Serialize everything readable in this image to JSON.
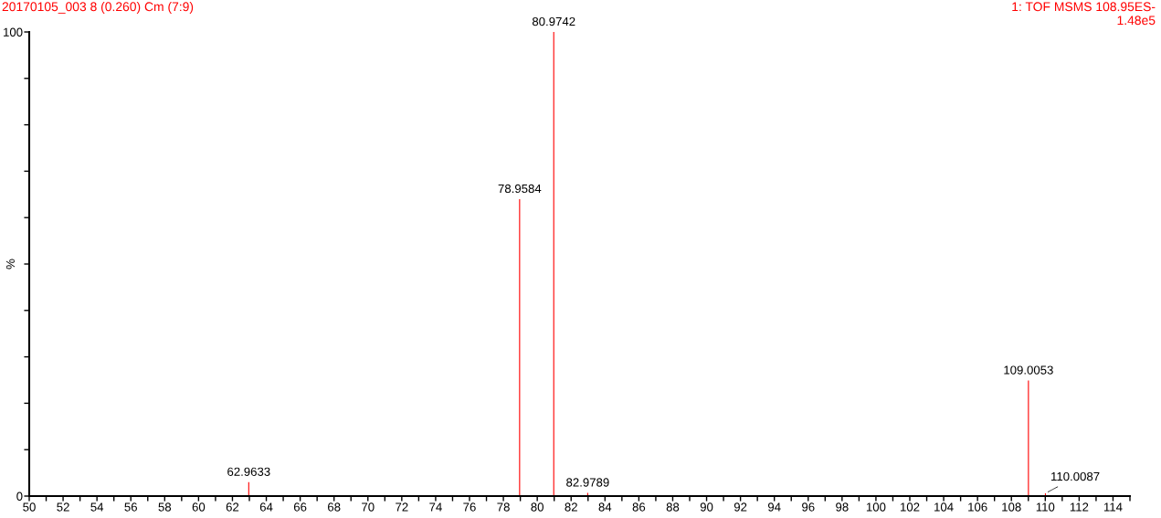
{
  "chart_data": {
    "type": "bar",
    "title": "20170105_003 8 (0.260) Cm (7:9)",
    "annotations": [
      "1: TOF MSMS 108.95ES-",
      "1.48e5",
      {
        "text": "62.9633",
        "x": 62.9633,
        "y": 3.0
      },
      {
        "text": "78.9584",
        "x": 78.9584,
        "y": 64.0
      },
      {
        "text": "80.9742",
        "x": 80.9742,
        "y": 100
      },
      {
        "text": "82.9789",
        "x": 82.9789,
        "y": 0.7
      },
      {
        "text": "109.0053",
        "x": 109.0053,
        "y": 24.9
      },
      {
        "text": "110.0087",
        "x": 110.0087,
        "y": 0.6
      }
    ],
    "ylabel": "%",
    "x": [
      62.9633,
      78.9584,
      80.9742,
      82.9789,
      109.0053,
      110.0087
    ],
    "values": [
      3.0,
      64.0,
      100,
      0.7,
      24.9,
      0.6
    ],
    "color": "#ff0000",
    "xlim": [
      50,
      115
    ],
    "xticks": [
      50,
      {
        "value": 51,
        "label": null
      },
      52,
      {
        "value": 53,
        "label": null
      },
      54,
      {
        "value": 55,
        "label": null
      },
      56,
      {
        "value": 57,
        "label": null
      },
      58,
      {
        "value": 59,
        "label": null
      },
      60,
      {
        "value": 61,
        "label": null
      },
      62,
      {
        "value": 63,
        "label": null
      },
      64,
      {
        "value": 65,
        "label": null
      },
      66,
      {
        "value": 67,
        "label": null
      },
      68,
      {
        "value": 69,
        "label": null
      },
      70,
      {
        "value": 71,
        "label": null
      },
      72,
      {
        "value": 73,
        "label": null
      },
      74,
      {
        "value": 75,
        "label": null
      },
      76,
      {
        "value": 77,
        "label": null
      },
      78,
      {
        "value": 79,
        "label": null
      },
      80,
      {
        "value": 81,
        "label": null
      },
      82,
      {
        "value": 83,
        "label": null
      },
      84,
      {
        "value": 85,
        "label": null
      },
      86,
      {
        "value": 87,
        "label": null
      },
      88,
      {
        "value": 89,
        "label": null
      },
      90,
      {
        "value": 91,
        "label": null
      },
      92,
      {
        "value": 93,
        "label": null
      },
      94,
      {
        "value": 95,
        "label": null
      },
      96,
      {
        "value": 97,
        "label": null
      },
      98,
      {
        "value": 99,
        "label": null
      },
      100,
      {
        "value": 101,
        "label": null
      },
      102,
      {
        "value": 103,
        "label": null
      },
      104,
      {
        "value": 105,
        "label": null
      },
      106,
      {
        "value": 107,
        "label": null
      },
      108,
      {
        "value": 109,
        "label": null
      },
      110,
      {
        "value": 111,
        "label": null
      },
      112,
      {
        "value": 113,
        "label": null
      },
      114,
      {
        "value": 115,
        "label": null
      }
    ],
    "ylim": [
      0,
      100
    ],
    "yticks": [
      0,
      {
        "value": 10,
        "label": null
      },
      {
        "value": 20,
        "label": null
      },
      {
        "value": 30,
        "label": null
      },
      {
        "value": 40,
        "label": null
      },
      {
        "value": 50,
        "label": null
      },
      {
        "value": 60,
        "label": null
      },
      {
        "value": 70,
        "label": null
      },
      {
        "value": 80,
        "label": null
      },
      {
        "value": 90,
        "label": null
      },
      100
    ],
    "grid": false,
    "legend": false
  }
}
